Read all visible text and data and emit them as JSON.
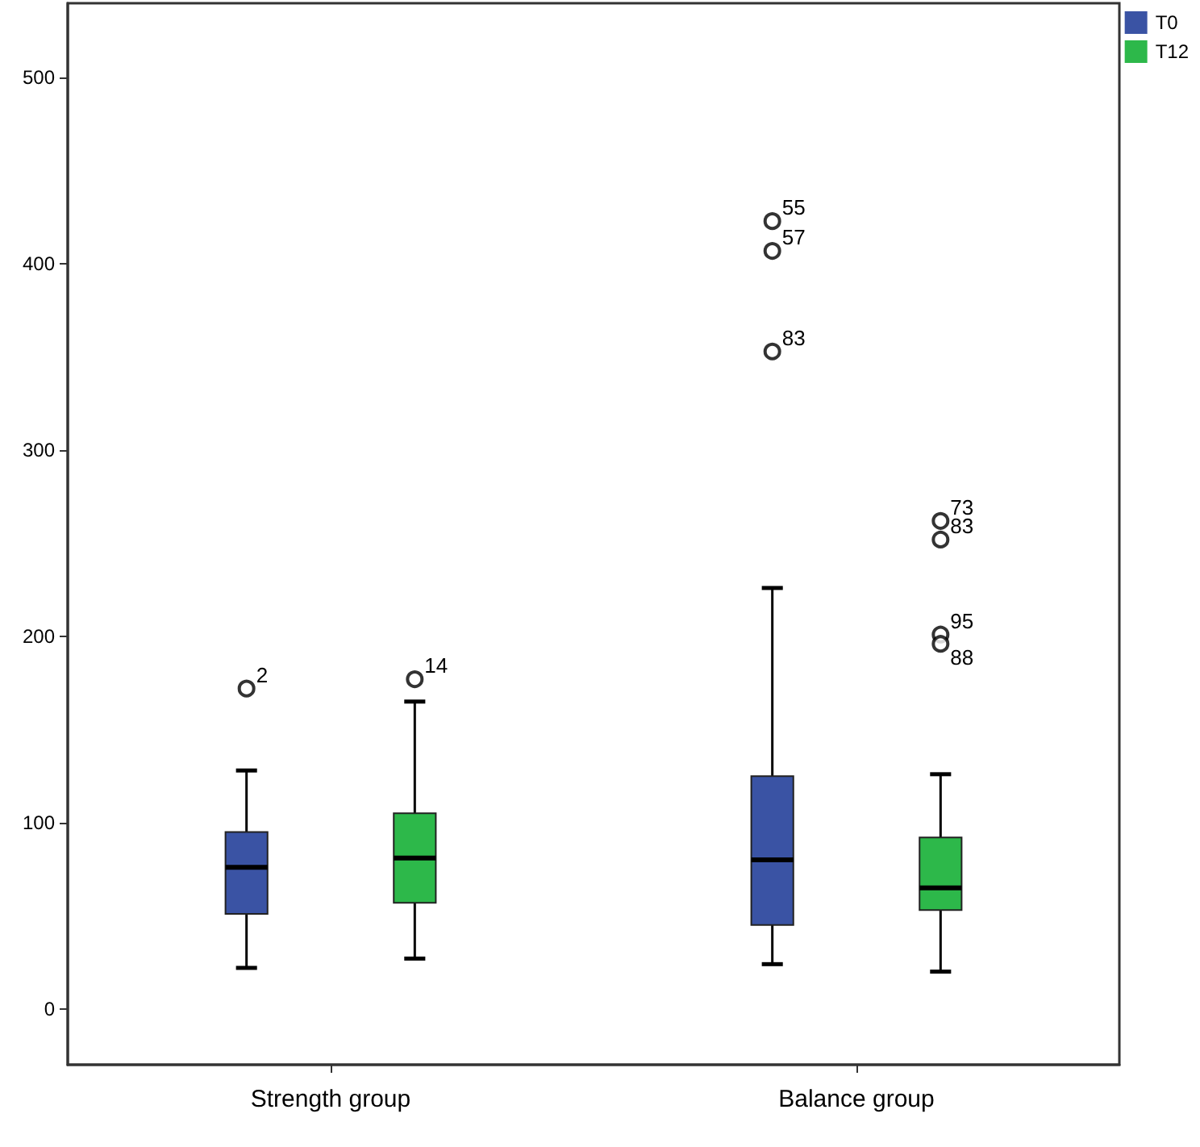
{
  "chart_data": {
    "type": "box",
    "categories": [
      "Strength group",
      "Balance group"
    ],
    "series": [
      {
        "name": "T0",
        "color": "#3a53a4",
        "boxes": [
          {
            "low": 22,
            "q1": 51,
            "median": 76,
            "q3": 95,
            "high": 128,
            "outliers": [
              172
            ]
          },
          {
            "low": 24,
            "q1": 45,
            "median": 80,
            "q3": 125,
            "high": 226,
            "outliers": [
              423,
              407,
              353
            ]
          }
        ]
      },
      {
        "name": "T12",
        "color": "#2db84a",
        "boxes": [
          {
            "low": 27,
            "q1": 57,
            "median": 81,
            "q3": 105,
            "high": 165,
            "outliers": [
              177
            ]
          },
          {
            "low": 20,
            "q1": 53,
            "median": 65,
            "q3": 92,
            "high": 126,
            "outliers": [
              262,
              252,
              201,
              196
            ]
          }
        ]
      }
    ],
    "annotations": [
      "2",
      "14",
      "55",
      "57",
      "83",
      "73",
      "83",
      "95",
      "88"
    ],
    "ylim": [
      -30,
      540
    ],
    "yticks": [
      0,
      100,
      200,
      300,
      400,
      500
    ],
    "legend": "top right"
  }
}
